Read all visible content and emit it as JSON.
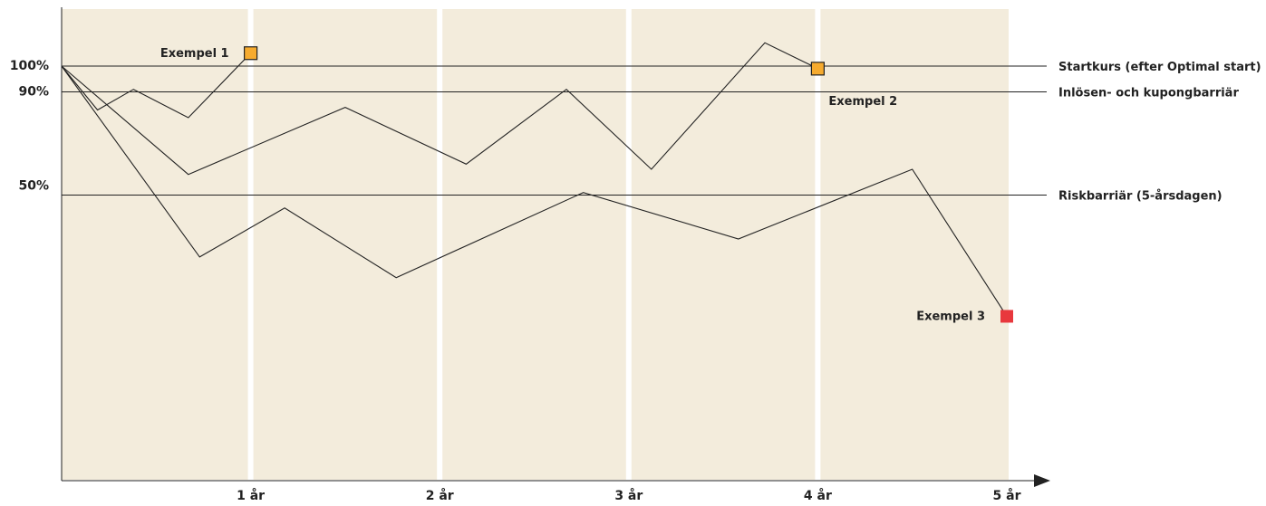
{
  "chart_data": {
    "type": "line",
    "title": "",
    "xlabel": "",
    "ylabel": "",
    "x_ticks": [
      "1 år",
      "2 år",
      "3 år",
      "4 år",
      "5 år"
    ],
    "xlim": [
      0,
      5
    ],
    "y_ticks": [
      "100%",
      "90%",
      "50%"
    ],
    "ylim_percent": [
      0,
      118
    ],
    "grid": "vertical, white bands at each year",
    "colors": {
      "background": "#f3ecdc",
      "grid": "#ffffff",
      "line": "#222222",
      "marker_redemption": "#f6ab2f",
      "marker_loss": "#e8383d"
    },
    "reference_lines": [
      {
        "name": "startkurs",
        "y": 100,
        "label": "Startkurs (efter Optimal start)"
      },
      {
        "name": "inlosen",
        "y": 90,
        "label": "Inlösen- och kupongbarriär"
      },
      {
        "name": "risk",
        "y": 50,
        "label": "Riskbarriär (5-årsdagen)"
      }
    ],
    "series": [
      {
        "points": [
          [
            0,
            100
          ],
          [
            0.19,
            83
          ],
          [
            0.38,
            91
          ],
          [
            0.67,
            80
          ],
          [
            1.0,
            105
          ]
        ]
      },
      {
        "points": [
          [
            0,
            100
          ],
          [
            0.67,
            58
          ],
          [
            1.5,
            84
          ],
          [
            2.14,
            62
          ],
          [
            2.67,
            91
          ],
          [
            3.12,
            60
          ],
          [
            3.72,
            109
          ],
          [
            4.0,
            99
          ]
        ]
      },
      {
        "points": [
          [
            0,
            100
          ],
          [
            0.73,
            26
          ],
          [
            1.18,
            45
          ],
          [
            1.77,
            18
          ],
          [
            2.76,
            51
          ],
          [
            3.58,
            33
          ],
          [
            4.5,
            60
          ],
          [
            5.0,
            3
          ]
        ]
      }
    ],
    "markers": [
      {
        "x": 1.0,
        "y": 105,
        "label": "Exempel 1",
        "label_side": "left",
        "color": "#f6ab2f"
      },
      {
        "x": 4.0,
        "y": 99,
        "label": "Exempel 2",
        "label_side": "below",
        "color": "#f6ab2f"
      },
      {
        "x": 5.0,
        "y": 3,
        "label": "Exempel 3",
        "label_side": "left",
        "color": "#e8383d"
      }
    ]
  }
}
